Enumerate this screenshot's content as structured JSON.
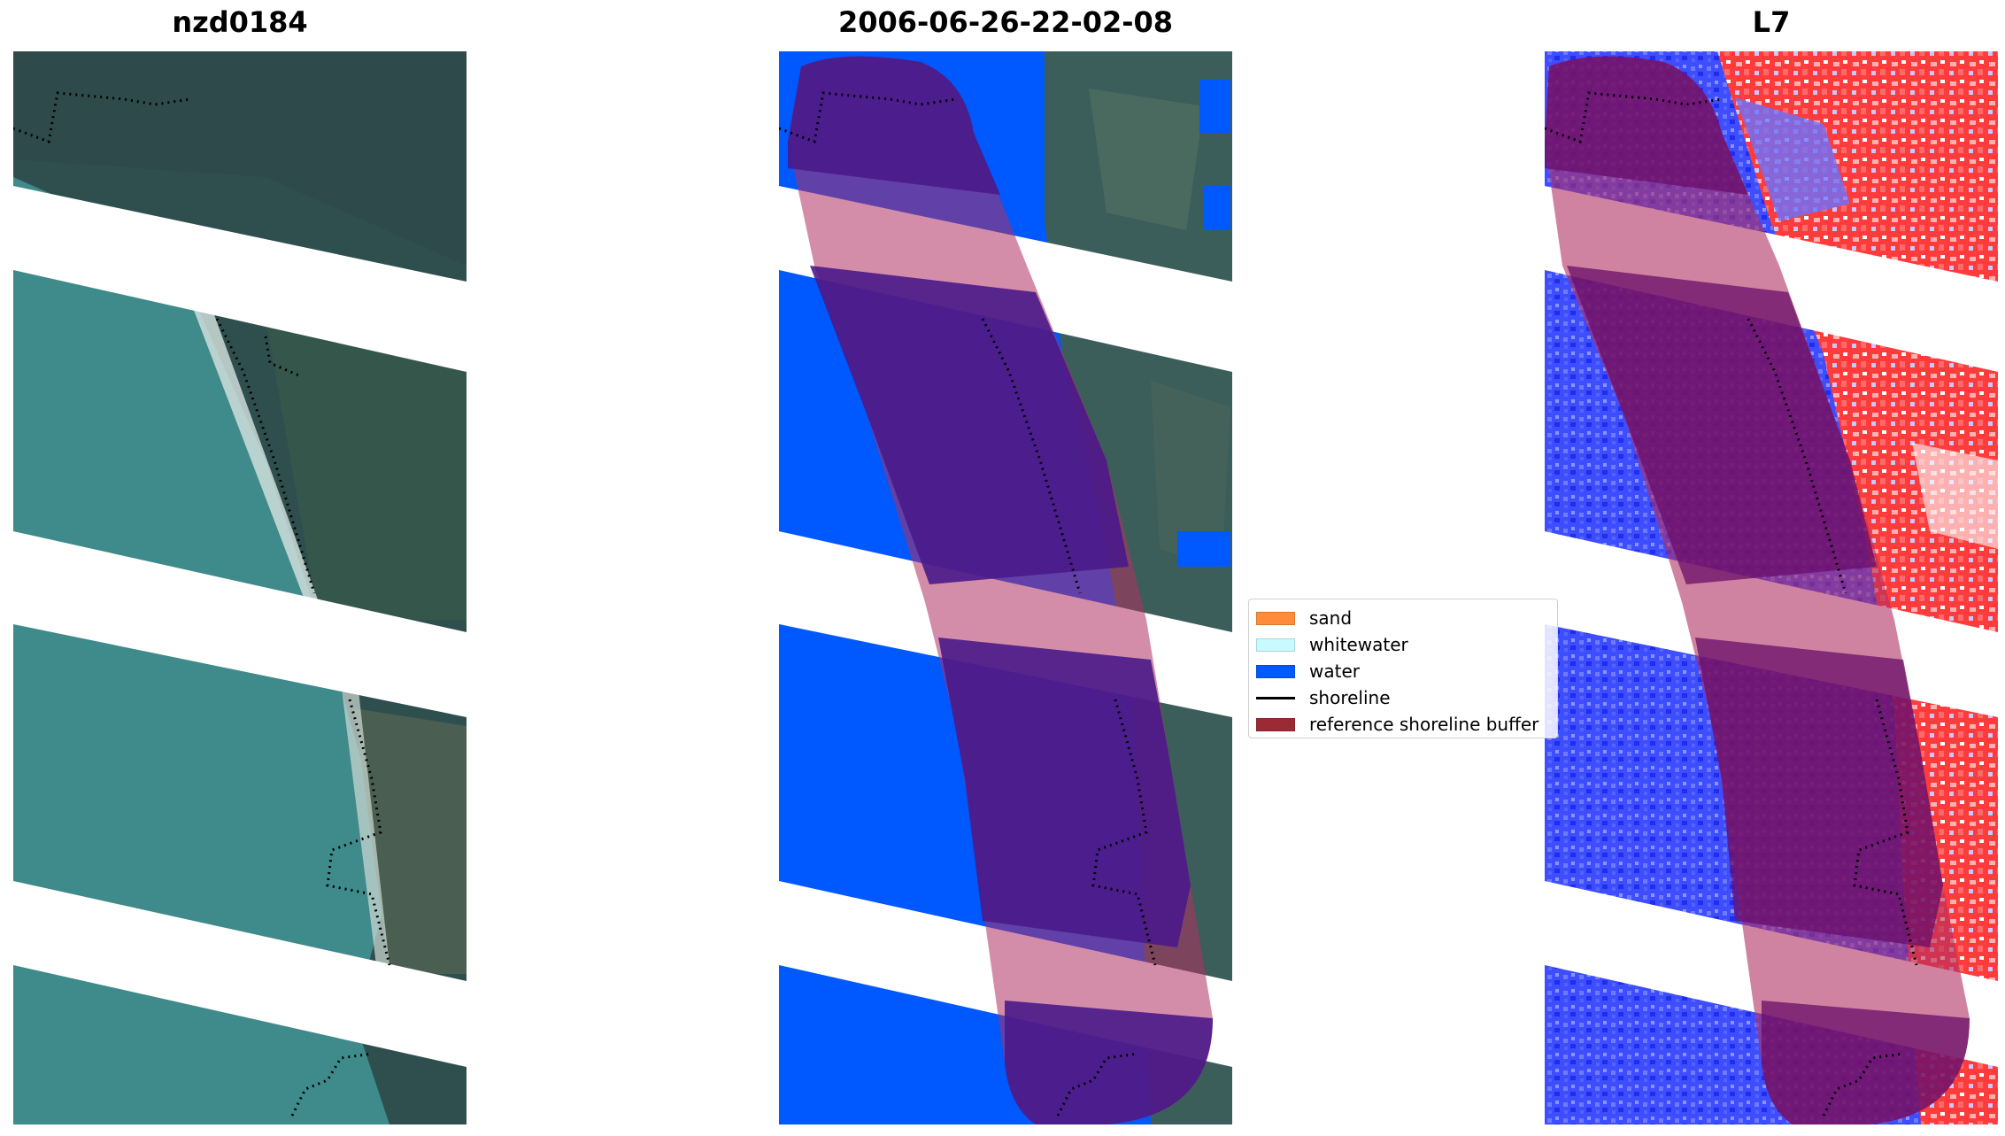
{
  "panels": {
    "left_title": "nzd0184",
    "middle_title": "2006-06-26-22-02-08",
    "right_title": "L7"
  },
  "legend": {
    "items": [
      {
        "label": "sand",
        "color": "#ff8c3a"
      },
      {
        "label": "whitewater",
        "color": "#c8fbff"
      },
      {
        "label": "water",
        "color": "#0058ff"
      },
      {
        "label": "shoreline",
        "color": "#000000",
        "kind": "line"
      },
      {
        "label": "reference shoreline buffer",
        "color": "#9b2a35"
      }
    ]
  },
  "colors": {
    "water_class": "#0058ff",
    "buffer_overlay": "#b03060",
    "satellite_water": "#3f8a8a",
    "satellite_land": "#2f4f4f",
    "index_high": "#ff2a2a",
    "index_low": "#2a3cff"
  }
}
